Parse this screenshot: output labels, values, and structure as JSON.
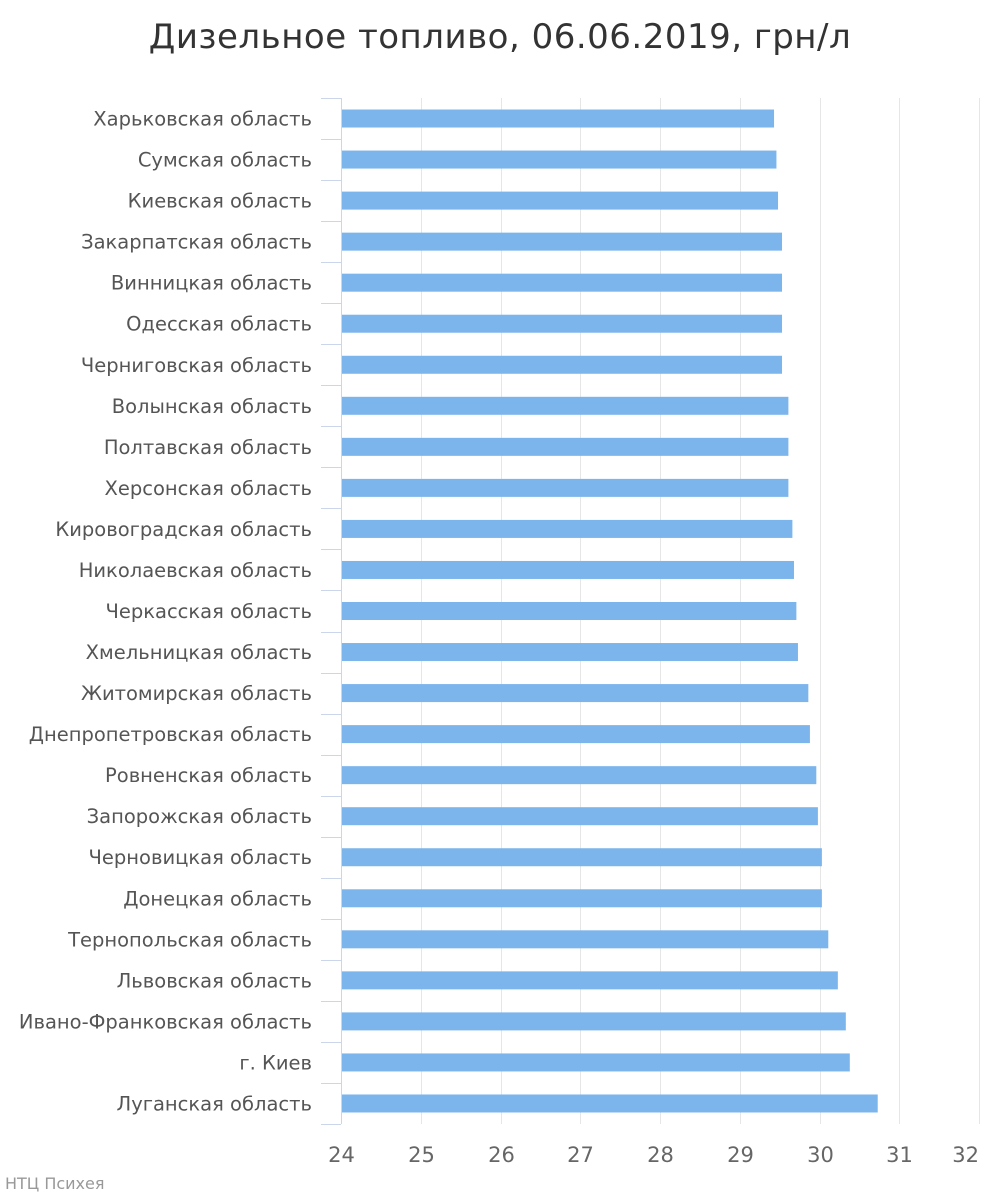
{
  "chart_data": {
    "type": "bar",
    "orientation": "horizontal",
    "title": "Дизельное топливо, 06.06.2019, грн/л",
    "categories": [
      "Харьковская область",
      "Сумская область",
      "Киевская область",
      "Закарпатская область",
      "Винницкая область",
      "Одесская область",
      "Черниговская область",
      "Волынская область",
      "Полтавская область",
      "Херсонская область",
      "Кировоградская область",
      "Николаевская область",
      "Черкасская область",
      "Хмельницкая область",
      "Житомирская область",
      "Днепропетровская область",
      "Ровненская область",
      "Запорожская область",
      "Черновицкая область",
      "Донецкая область",
      "Тернопольская область",
      "Львовская область",
      "Ивано-Франковская область",
      "г. Киев",
      "Луганская область"
    ],
    "values": [
      29.43,
      29.46,
      29.48,
      29.53,
      29.53,
      29.53,
      29.53,
      29.61,
      29.61,
      29.61,
      29.66,
      29.68,
      29.71,
      29.73,
      29.86,
      29.88,
      29.96,
      29.98,
      30.03,
      30.03,
      30.11,
      30.23,
      30.33,
      30.38,
      30.73
    ],
    "xlim": [
      24,
      32
    ],
    "x_ticks": [
      "24",
      "25",
      "26",
      "27",
      "28",
      "29",
      "30",
      "31",
      "32"
    ],
    "grid": true,
    "bar_color": "#7cb5ec",
    "credit": "НТЦ Психея"
  }
}
